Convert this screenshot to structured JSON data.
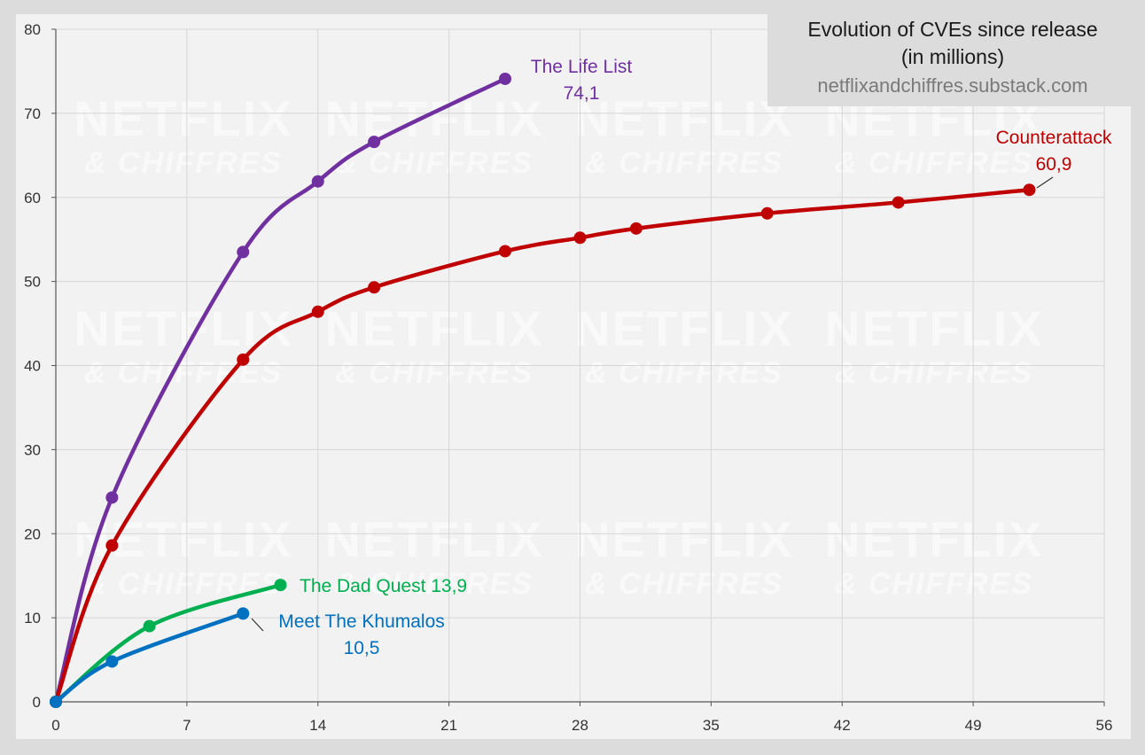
{
  "chart_data": {
    "type": "line",
    "title_lines": [
      "Evolution of CVEs since release",
      "(in millions)"
    ],
    "source": "netflixandchiffres.substack.com",
    "watermark": [
      "NETFLIX",
      "& CHIFFRES"
    ],
    "xlabel": "",
    "ylabel": "",
    "xlim": [
      0,
      56
    ],
    "ylim": [
      0,
      80
    ],
    "x_ticks": [
      0,
      7,
      14,
      21,
      28,
      35,
      42,
      49,
      56
    ],
    "y_ticks": [
      0,
      10,
      20,
      30,
      40,
      50,
      60,
      70,
      80
    ],
    "grid": true,
    "legend": "none",
    "series": [
      {
        "name": "The Life List",
        "label_value": "74,1",
        "color": "#7030a0",
        "points": [
          [
            0,
            0
          ],
          [
            3,
            24.3
          ],
          [
            10,
            53.5
          ],
          [
            14,
            61.9
          ],
          [
            17,
            66.6
          ],
          [
            24,
            74.1
          ]
        ]
      },
      {
        "name": "Counterattack",
        "label_value": "60,9",
        "color": "#c00000",
        "points": [
          [
            0,
            0
          ],
          [
            3,
            18.6
          ],
          [
            10,
            40.7
          ],
          [
            14,
            46.4
          ],
          [
            17,
            49.3
          ],
          [
            24,
            53.6
          ],
          [
            28,
            55.2
          ],
          [
            31,
            56.3
          ],
          [
            38,
            58.1
          ],
          [
            45,
            59.4
          ],
          [
            52,
            60.9
          ]
        ]
      },
      {
        "name": "The Dad Quest",
        "label_value": "13,9",
        "color": "#00b050",
        "points": [
          [
            0,
            0
          ],
          [
            5,
            9.0
          ],
          [
            12,
            13.9
          ]
        ]
      },
      {
        "name": "Meet The Khumalos",
        "label_value": "10,5",
        "color": "#0070c0",
        "points": [
          [
            0,
            0
          ],
          [
            3,
            4.8
          ],
          [
            10,
            10.5
          ]
        ]
      }
    ]
  }
}
